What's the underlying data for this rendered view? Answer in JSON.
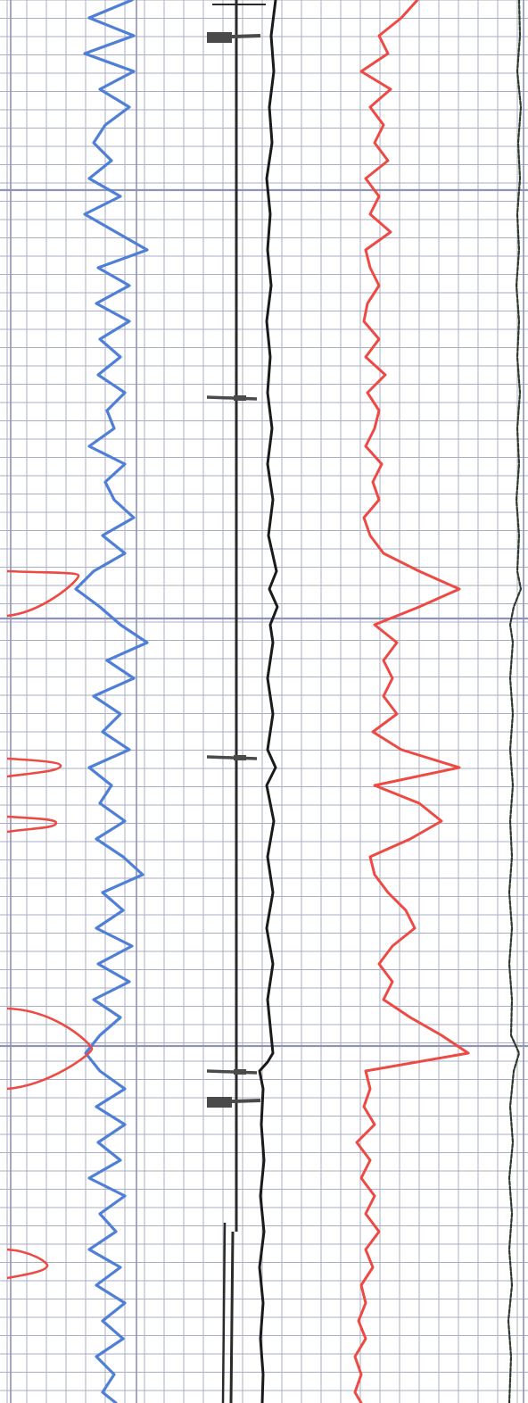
{
  "chart_data": {
    "type": "line",
    "title": "",
    "xlabel": "",
    "ylabel": "",
    "grid": true,
    "colors": {
      "grid_minor": "#a9aec4",
      "grid_major": "#8f93b4",
      "blue_trace": "#4f7fd6",
      "red_trace": "#ee4a44",
      "black_trace": "#1a1a1a",
      "caliper": "#2a2a2a",
      "marker": "#4a4a4a",
      "right_edge_trace": "#2d3a2d"
    },
    "depth_range": [
      0,
      1572
    ],
    "series": [
      {
        "key": "blue",
        "x_range": [
          80,
          180
        ],
        "points": [
          [
            0,
            148
          ],
          [
            20,
            100
          ],
          [
            40,
            150
          ],
          [
            60,
            95
          ],
          [
            80,
            150
          ],
          [
            100,
            112
          ],
          [
            120,
            145
          ],
          [
            140,
            118
          ],
          [
            160,
            105
          ],
          [
            180,
            125
          ],
          [
            200,
            100
          ],
          [
            220,
            135
          ],
          [
            240,
            95
          ],
          [
            260,
            130
          ],
          [
            280,
            165
          ],
          [
            300,
            110
          ],
          [
            320,
            145
          ],
          [
            340,
            108
          ],
          [
            360,
            145
          ],
          [
            380,
            112
          ],
          [
            400,
            135
          ],
          [
            420,
            110
          ],
          [
            440,
            140
          ],
          [
            460,
            120
          ],
          [
            480,
            128
          ],
          [
            500,
            100
          ],
          [
            520,
            140
          ],
          [
            540,
            118
          ],
          [
            560,
            128
          ],
          [
            580,
            150
          ],
          [
            600,
            115
          ],
          [
            620,
            140
          ],
          [
            640,
            105
          ],
          [
            660,
            85
          ],
          [
            680,
            112
          ],
          [
            700,
            135
          ],
          [
            720,
            165
          ],
          [
            740,
            120
          ],
          [
            760,
            150
          ],
          [
            780,
            105
          ],
          [
            800,
            135
          ],
          [
            820,
            115
          ],
          [
            840,
            145
          ],
          [
            860,
            100
          ],
          [
            880,
            125
          ],
          [
            900,
            112
          ],
          [
            920,
            140
          ],
          [
            940,
            108
          ],
          [
            960,
            138
          ],
          [
            980,
            160
          ],
          [
            1000,
            115
          ],
          [
            1020,
            138
          ],
          [
            1040,
            108
          ],
          [
            1060,
            148
          ],
          [
            1080,
            110
          ],
          [
            1100,
            145
          ],
          [
            1120,
            105
          ],
          [
            1140,
            135
          ],
          [
            1160,
            112
          ],
          [
            1180,
            96
          ],
          [
            1200,
            112
          ],
          [
            1220,
            140
          ],
          [
            1240,
            108
          ],
          [
            1260,
            140
          ],
          [
            1280,
            110
          ],
          [
            1300,
            135
          ],
          [
            1320,
            100
          ],
          [
            1340,
            140
          ],
          [
            1360,
            112
          ],
          [
            1380,
            130
          ],
          [
            1400,
            100
          ],
          [
            1420,
            135
          ],
          [
            1440,
            108
          ],
          [
            1460,
            140
          ],
          [
            1480,
            115
          ],
          [
            1500,
            138
          ],
          [
            1520,
            108
          ],
          [
            1540,
            128
          ],
          [
            1560,
            115
          ],
          [
            1572,
            130
          ]
        ]
      },
      {
        "key": "red_main",
        "x_range": [
          390,
          530
        ],
        "points": [
          [
            0,
            468
          ],
          [
            20,
            450
          ],
          [
            40,
            425
          ],
          [
            60,
            435
          ],
          [
            80,
            405
          ],
          [
            100,
            438
          ],
          [
            120,
            415
          ],
          [
            140,
            430
          ],
          [
            160,
            420
          ],
          [
            180,
            435
          ],
          [
            200,
            410
          ],
          [
            220,
            425
          ],
          [
            240,
            415
          ],
          [
            260,
            438
          ],
          [
            280,
            410
          ],
          [
            300,
            415
          ],
          [
            320,
            425
          ],
          [
            340,
            412
          ],
          [
            360,
            408
          ],
          [
            380,
            425
          ],
          [
            400,
            410
          ],
          [
            420,
            432
          ],
          [
            440,
            412
          ],
          [
            460,
            425
          ],
          [
            480,
            420
          ],
          [
            500,
            410
          ],
          [
            520,
            428
          ],
          [
            540,
            418
          ],
          [
            560,
            425
          ],
          [
            580,
            408
          ],
          [
            600,
            415
          ],
          [
            620,
            430
          ],
          [
            640,
            470
          ],
          [
            660,
            515
          ],
          [
            680,
            470
          ],
          [
            700,
            420
          ],
          [
            720,
            445
          ],
          [
            740,
            430
          ],
          [
            760,
            440
          ],
          [
            780,
            430
          ],
          [
            800,
            445
          ],
          [
            820,
            418
          ],
          [
            840,
            450
          ],
          [
            860,
            515
          ],
          [
            880,
            420
          ],
          [
            900,
            470
          ],
          [
            920,
            495
          ],
          [
            940,
            460
          ],
          [
            960,
            415
          ],
          [
            980,
            420
          ],
          [
            1000,
            435
          ],
          [
            1020,
            455
          ],
          [
            1040,
            465
          ],
          [
            1060,
            440
          ],
          [
            1080,
            425
          ],
          [
            1100,
            440
          ],
          [
            1120,
            430
          ],
          [
            1140,
            460
          ],
          [
            1160,
            495
          ],
          [
            1180,
            525
          ],
          [
            1200,
            410
          ],
          [
            1220,
            415
          ],
          [
            1240,
            408
          ],
          [
            1260,
            420
          ],
          [
            1280,
            400
          ],
          [
            1300,
            415
          ],
          [
            1320,
            405
          ],
          [
            1340,
            420
          ],
          [
            1360,
            410
          ],
          [
            1380,
            425
          ],
          [
            1400,
            410
          ],
          [
            1420,
            418
          ],
          [
            1440,
            405
          ],
          [
            1460,
            410
          ],
          [
            1480,
            402
          ],
          [
            1500,
            410
          ],
          [
            1520,
            398
          ],
          [
            1540,
            405
          ],
          [
            1560,
            398
          ],
          [
            1572,
            405
          ]
        ]
      },
      {
        "key": "black",
        "x_range": [
          290,
          320
        ],
        "points": [
          [
            0,
            309
          ],
          [
            40,
            304
          ],
          [
            80,
            307
          ],
          [
            120,
            302
          ],
          [
            160,
            305
          ],
          [
            200,
            299
          ],
          [
            240,
            303
          ],
          [
            280,
            300
          ],
          [
            320,
            304
          ],
          [
            360,
            299
          ],
          [
            400,
            303
          ],
          [
            440,
            300
          ],
          [
            480,
            305
          ],
          [
            520,
            300
          ],
          [
            560,
            306
          ],
          [
            600,
            301
          ],
          [
            640,
            310
          ],
          [
            660,
            302
          ],
          [
            680,
            311
          ],
          [
            700,
            303
          ],
          [
            720,
            306
          ],
          [
            760,
            300
          ],
          [
            800,
            306
          ],
          [
            840,
            300
          ],
          [
            860,
            309
          ],
          [
            880,
            299
          ],
          [
            920,
            307
          ],
          [
            960,
            300
          ],
          [
            1000,
            306
          ],
          [
            1040,
            299
          ],
          [
            1080,
            306
          ],
          [
            1120,
            300
          ],
          [
            1160,
            304
          ],
          [
            1180,
            306
          ],
          [
            1190,
            300
          ],
          [
            1200,
            291
          ],
          [
            1220,
            295
          ],
          [
            1260,
            293
          ],
          [
            1300,
            296
          ],
          [
            1340,
            292
          ],
          [
            1380,
            296
          ],
          [
            1420,
            291
          ],
          [
            1460,
            295
          ],
          [
            1500,
            292
          ],
          [
            1540,
            295
          ],
          [
            1572,
            294
          ]
        ]
      },
      {
        "key": "right_edge",
        "x_range": [
          570,
          592
        ],
        "points": [
          [
            0,
            582
          ],
          [
            40,
            583
          ],
          [
            80,
            580
          ],
          [
            120,
            584
          ],
          [
            160,
            581
          ],
          [
            200,
            583
          ],
          [
            240,
            580
          ],
          [
            280,
            582
          ],
          [
            320,
            579
          ],
          [
            360,
            582
          ],
          [
            400,
            580
          ],
          [
            440,
            583
          ],
          [
            480,
            580
          ],
          [
            520,
            582
          ],
          [
            560,
            579
          ],
          [
            600,
            582
          ],
          [
            640,
            580
          ],
          [
            660,
            584
          ],
          [
            680,
            576
          ],
          [
            700,
            572
          ],
          [
            720,
            575
          ],
          [
            760,
            572
          ],
          [
            800,
            575
          ],
          [
            840,
            572
          ],
          [
            880,
            575
          ],
          [
            920,
            572
          ],
          [
            960,
            574
          ],
          [
            1000,
            571
          ],
          [
            1040,
            574
          ],
          [
            1080,
            571
          ],
          [
            1120,
            574
          ],
          [
            1160,
            573
          ],
          [
            1180,
            582
          ],
          [
            1200,
            576
          ],
          [
            1240,
            572
          ],
          [
            1280,
            575
          ],
          [
            1320,
            571
          ],
          [
            1360,
            574
          ],
          [
            1400,
            571
          ],
          [
            1440,
            574
          ],
          [
            1480,
            570
          ],
          [
            1520,
            573
          ],
          [
            1572,
            571
          ]
        ]
      }
    ],
    "red_spikes": [
      {
        "start": 640,
        "end": 690,
        "peak": 645,
        "amp": 80
      },
      {
        "start": 850,
        "end": 870,
        "peak": 858,
        "amp": 60
      },
      {
        "start": 915,
        "end": 932,
        "peak": 922,
        "amp": 55
      },
      {
        "start": 1130,
        "end": 1220,
        "peak": 1175,
        "amp": 95
      },
      {
        "start": 1400,
        "end": 1432,
        "peak": 1418,
        "amp": 45
      }
    ],
    "markers": [
      {
        "depth": 42,
        "kind": "major"
      },
      {
        "depth": 445,
        "kind": "minor"
      },
      {
        "depth": 848,
        "kind": "minor"
      },
      {
        "depth": 1200,
        "kind": "minor"
      },
      {
        "depth": 1235,
        "kind": "major"
      }
    ]
  }
}
